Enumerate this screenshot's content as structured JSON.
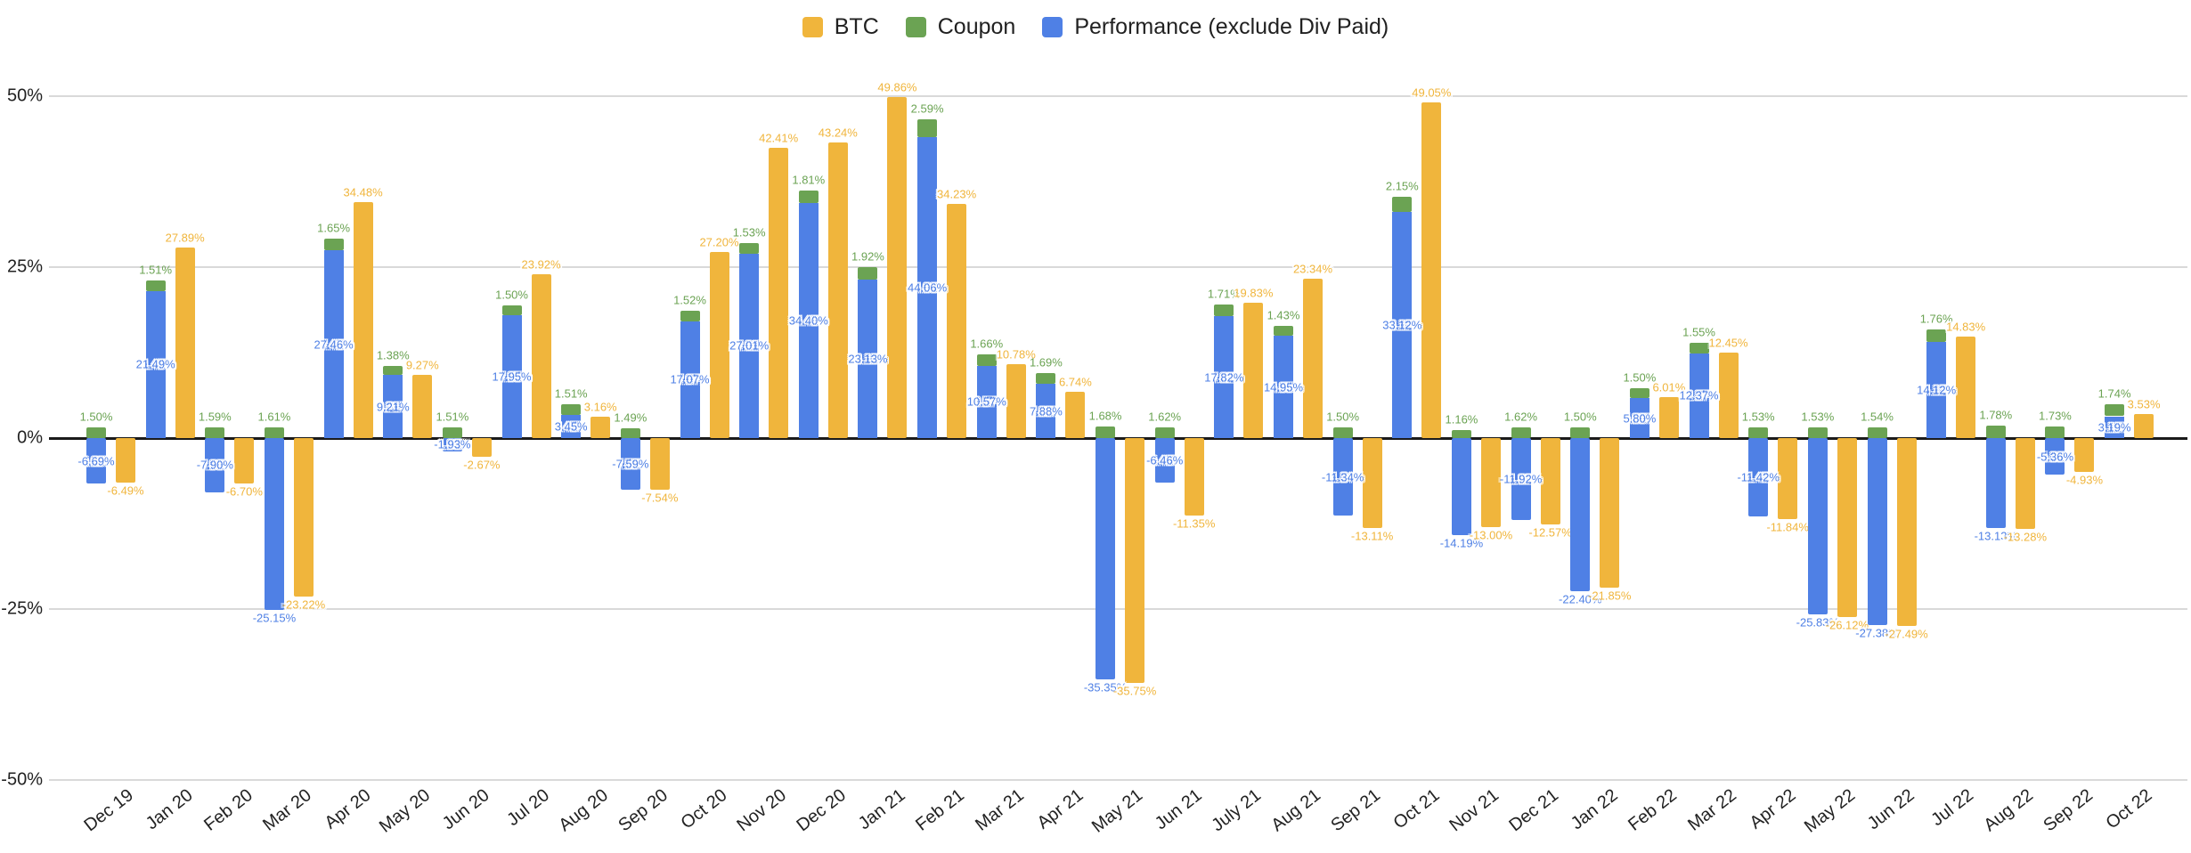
{
  "chart_data": {
    "type": "bar",
    "title": "",
    "stacked": "Coupon is stacked on top of Performance; BTC is a separate grouped bar",
    "legend_position": "top-center",
    "grid": true,
    "ylim": [
      -50,
      50
    ],
    "y_ticks_pct": [
      50,
      25,
      0,
      -25,
      -50
    ],
    "y_tick_labels": [
      "50%",
      "25%",
      "0%",
      "-25%",
      "-50%"
    ],
    "axis_color": "#222222",
    "grid_color": "#d9d9d9",
    "zero_line_color": "#1b1b1b",
    "categories": [
      "Dec 19",
      "Jan 20",
      "Feb 20",
      "Mar 20",
      "Apr 20",
      "May 20",
      "Jun 20",
      "Jul 20",
      "Aug 20",
      "Sep 20",
      "Oct 20",
      "Nov 20",
      "Dec 20",
      "Jan 21",
      "Feb 21",
      "Mar 21",
      "Apr 21",
      "May 21",
      "Jun 21",
      "July 21",
      "Aug 21",
      "Sep 21",
      "Oct 21",
      "Nov 21",
      "Dec 21",
      "Jan 22",
      "Feb 22",
      "Mar 22",
      "Apr 22",
      "May 22",
      "Jun 22",
      "Jul 22",
      "Aug 22",
      "Sep 22",
      "Oct 22"
    ],
    "series": [
      {
        "name": "BTC",
        "color": "#F0B53C",
        "values": [
          -6.49,
          27.89,
          -6.7,
          -23.22,
          34.48,
          9.27,
          -2.67,
          23.92,
          3.16,
          -7.54,
          27.2,
          42.41,
          43.24,
          49.86,
          34.23,
          10.78,
          6.74,
          -35.75,
          -11.35,
          19.83,
          23.34,
          -13.11,
          49.05,
          -13.0,
          -12.57,
          -21.85,
          6.01,
          12.45,
          -11.84,
          -26.12,
          -27.49,
          14.83,
          -13.28,
          -4.93,
          3.53
        ]
      },
      {
        "name": "Coupon",
        "color": "#6BA353",
        "values": [
          1.5,
          1.51,
          1.59,
          1.61,
          1.65,
          1.38,
          1.51,
          1.5,
          1.51,
          1.49,
          1.52,
          1.53,
          1.81,
          1.92,
          2.59,
          1.66,
          1.69,
          1.68,
          1.62,
          1.71,
          1.43,
          1.5,
          2.15,
          1.16,
          1.62,
          1.5,
          1.5,
          1.55,
          1.53,
          1.53,
          1.54,
          1.76,
          1.78,
          1.73,
          1.74
        ]
      },
      {
        "name": "Performance (exclude Div Paid)",
        "color": "#4F80E5",
        "values": [
          -6.69,
          21.49,
          -7.9,
          -25.15,
          27.46,
          9.21,
          -1.93,
          17.95,
          3.45,
          -7.59,
          17.07,
          27.01,
          34.4,
          23.13,
          44.06,
          10.57,
          7.88,
          -35.35,
          -6.46,
          17.82,
          14.95,
          -11.34,
          33.12,
          -14.19,
          -11.92,
          -22.4,
          5.8,
          12.37,
          -11.42,
          -25.83,
          -27.38,
          14.12,
          -13.13,
          -5.36,
          3.19
        ]
      }
    ],
    "label_format": "0.00%"
  }
}
